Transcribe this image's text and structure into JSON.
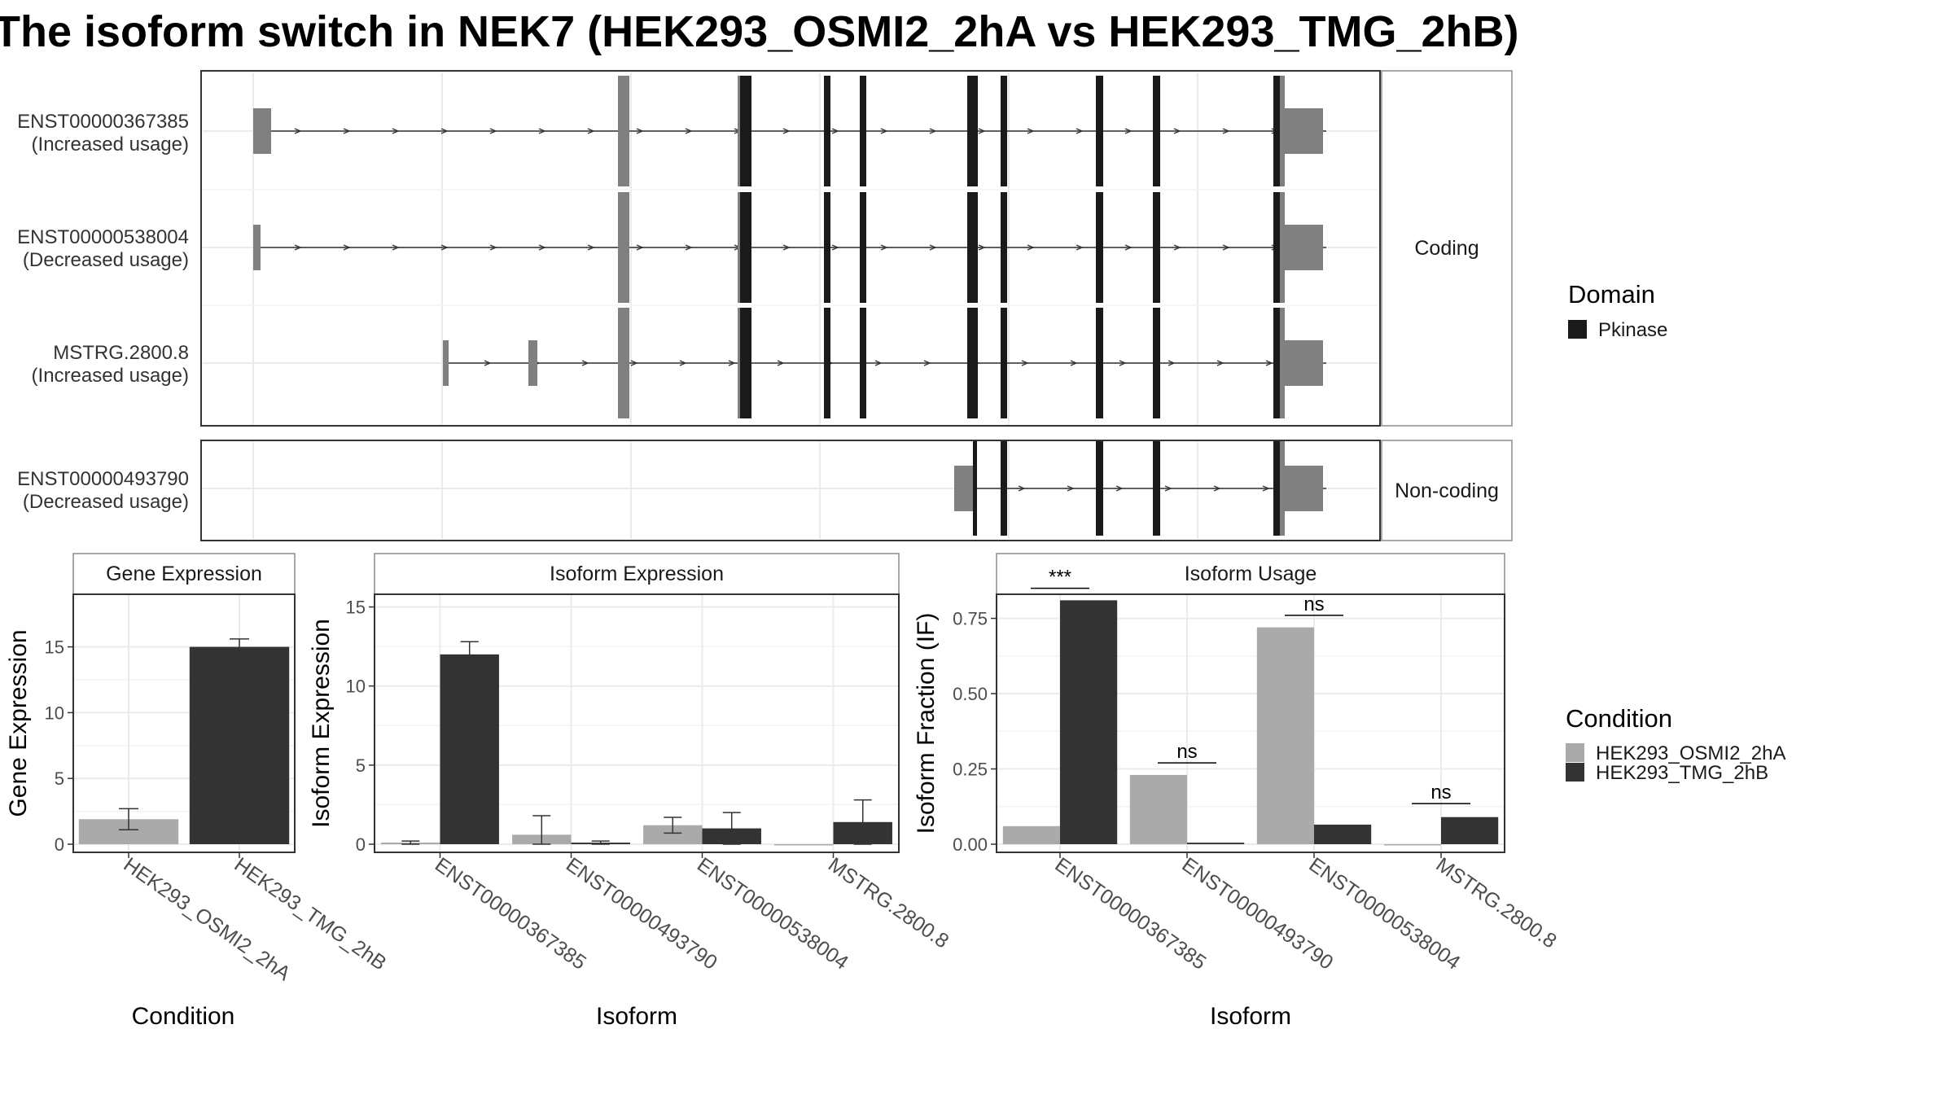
{
  "title": "The isoform switch in NEK7 (HEK293_OSMI2_2hA vs HEK293_TMG_2hB)",
  "colors": {
    "cond_a": "#aaaaaa",
    "cond_b": "#333333",
    "utr": "#808080",
    "domain": "#1a1a1a",
    "grid": "#ebebeb",
    "panel_border": "#333333",
    "strip_border": "#8c8c8c"
  },
  "structure": {
    "facets": [
      {
        "label": "Coding",
        "isoforms": [
          {
            "id": "ENST00000367385",
            "usage": "(Increased usage)"
          },
          {
            "id": "ENST00000538004",
            "usage": "(Decreased usage)"
          },
          {
            "id": "MSTRG.2800.8",
            "usage": "(Increased usage)"
          }
        ]
      },
      {
        "label": "Non-coding",
        "isoforms": [
          {
            "id": "ENST00000493790",
            "usage": "(Decreased usage)"
          }
        ]
      }
    ]
  },
  "legend_domain": {
    "title": "Domain",
    "items": [
      {
        "label": "Pkinase",
        "color": "#1a1a1a"
      }
    ]
  },
  "legend_condition": {
    "title": "Condition",
    "items": [
      {
        "label": "HEK293_OSMI2_2hA",
        "color": "#aaaaaa"
      },
      {
        "label": "HEK293_TMG_2hB",
        "color": "#333333"
      }
    ]
  },
  "chart_data": [
    {
      "type": "bar",
      "strip": "Gene Expression",
      "xlabel": "Condition",
      "ylabel": "Gene Expression",
      "ylim": [
        0,
        19
      ],
      "yticks": [
        0,
        5,
        10,
        15
      ],
      "categories": [
        "HEK293_OSMI2_2hA",
        "HEK293_TMG_2hB"
      ],
      "values": [
        1.9,
        15.0
      ],
      "err_low": [
        1.1,
        14.5
      ],
      "err_high": [
        2.7,
        15.6
      ],
      "colors": [
        "#aaaaaa",
        "#333333"
      ]
    },
    {
      "type": "bar",
      "strip": "Isoform Expression",
      "xlabel": "Isoform",
      "ylabel": "Isoform Expression",
      "ylim": [
        0,
        15.8
      ],
      "yticks": [
        0,
        5,
        10,
        15
      ],
      "categories": [
        "ENST00000367385",
        "ENST00000493790",
        "ENST00000538004",
        "MSTRG.2800.8"
      ],
      "series": [
        {
          "name": "HEK293_OSMI2_2hA",
          "values": [
            0.1,
            0.6,
            1.2,
            0.0
          ],
          "err_low": [
            0.0,
            0.0,
            0.7,
            0.0
          ],
          "err_high": [
            0.2,
            1.8,
            1.7,
            0.0
          ]
        },
        {
          "name": "HEK293_TMG_2hB",
          "values": [
            12.0,
            0.1,
            1.0,
            1.4
          ],
          "err_low": [
            11.2,
            0.0,
            0.0,
            0.0
          ],
          "err_high": [
            12.8,
            0.2,
            2.0,
            2.8
          ]
        }
      ]
    },
    {
      "type": "bar",
      "strip": "Isoform Usage",
      "xlabel": "Isoform",
      "ylabel": "Isoform Fraction (IF)",
      "ylim": [
        0,
        0.83
      ],
      "yticks": [
        "0.00",
        "0.25",
        "0.50",
        "0.75"
      ],
      "categories": [
        "ENST00000367385",
        "ENST00000493790",
        "ENST00000538004",
        "MSTRG.2800.8"
      ],
      "series": [
        {
          "name": "HEK293_OSMI2_2hA",
          "values": [
            0.06,
            0.23,
            0.72,
            0.0
          ]
        },
        {
          "name": "HEK293_TMG_2hB",
          "values": [
            0.81,
            0.005,
            0.065,
            0.09
          ]
        }
      ],
      "significance": [
        "***",
        "ns",
        "ns",
        "ns"
      ],
      "sig_y": [
        0.85,
        0.27,
        0.76,
        0.135
      ]
    }
  ]
}
